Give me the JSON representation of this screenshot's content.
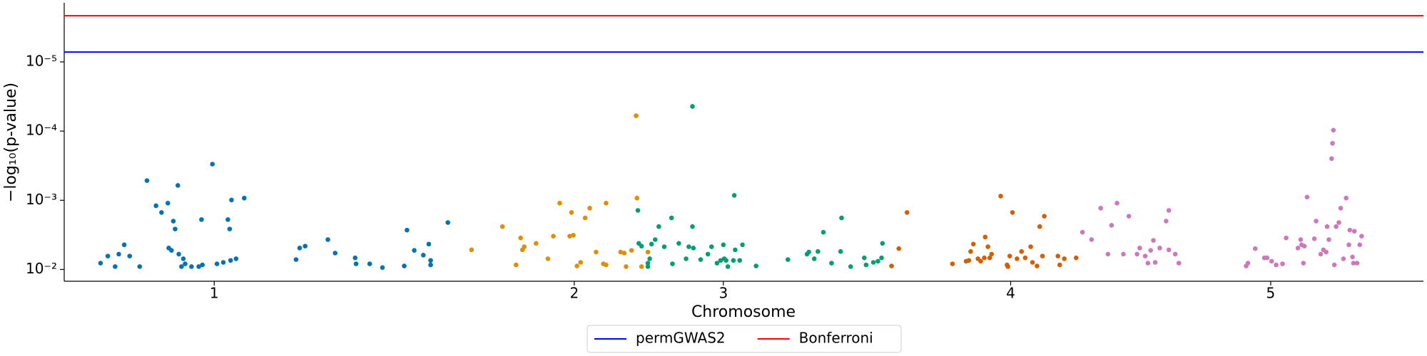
{
  "chart_data": {
    "type": "scatter",
    "x_label": "Chromosome",
    "y_label": "−log₁₀(p-value)",
    "log_y": true,
    "xlim": [
      0,
      149.5
    ],
    "xticks": [
      {
        "value": 16.5,
        "label": "1"
      },
      {
        "value": 56.1,
        "label": "2"
      },
      {
        "value": 72.5,
        "label": "3"
      },
      {
        "value": 104.1,
        "label": "4"
      },
      {
        "value": 132.7,
        "label": "5"
      }
    ],
    "ylim": [
      0.0148,
      1.4e-06
    ],
    "yticks": [
      {
        "value": 0.01,
        "label": "10⁻²"
      },
      {
        "value": 0.001,
        "label": "10⁻³"
      },
      {
        "value": 0.0001,
        "label": "10⁻⁴"
      },
      {
        "value": 1e-05,
        "label": "10⁻⁵"
      }
    ],
    "legend_position": "bottom",
    "thresholds": [
      {
        "name": "permGWAS2",
        "color": "#0000ff",
        "value": 7.2e-06
      },
      {
        "name": "Bonferroni",
        "color": "#ff0000",
        "value": 2.15e-06
      }
    ],
    "series": [
      {
        "color": "#0173b2",
        "x": [
          4.0,
          4.8,
          5.6,
          6.0,
          6.6,
          7.2,
          8.3,
          9.1,
          10.1,
          10.7,
          11.4,
          11.5,
          11.8,
          12.0,
          12.2,
          12.5,
          12.6,
          12.9,
          13.1,
          13.3,
          14.0,
          14.8,
          15.1,
          15.2,
          16.3,
          16.8,
          17.5,
          18.0,
          18.2,
          18.3,
          18.4,
          18.9,
          19.8,
          25.5,
          25.9,
          26.5,
          29.0,
          29.8,
          32.0,
          32.1,
          33.6,
          35.0,
          37.4,
          37.7,
          38.5,
          39.5,
          40.1,
          40.3,
          40.3,
          42.2
        ],
        "values": [
          0.0081,
          0.0064,
          0.0091,
          0.006,
          0.0044,
          0.0064,
          0.0091,
          0.00052,
          0.0012,
          0.0015,
          0.0011,
          0.0049,
          0.0053,
          0.002,
          0.0026,
          0.00061,
          0.006,
          0.0091,
          0.007,
          0.0083,
          0.0091,
          0.0091,
          0.0019,
          0.0086,
          0.0003,
          0.0083,
          0.0079,
          0.0019,
          0.0026,
          0.0074,
          0.00099,
          0.007,
          0.00093,
          0.0072,
          0.0049,
          0.0046,
          0.0037,
          0.0058,
          0.0068,
          0.0083,
          0.0083,
          0.0094,
          0.0089,
          0.0027,
          0.0053,
          0.0062,
          0.0043,
          0.0074,
          0.0086,
          0.0021
        ]
      },
      {
        "color": "#de8f05",
        "x": [
          44.8,
          48.2,
          49.7,
          50.2,
          50.4,
          50.6,
          51.9,
          53.2,
          53.8,
          54.5,
          55.6,
          55.8,
          56.0,
          56.4,
          56.8,
          57.3,
          57.8,
          58.5,
          59.3,
          59.6,
          59.6,
          61.2,
          61.6,
          61.8,
          62.4,
          62.9,
          63.0,
          63.5,
          64.2
        ],
        "values": [
          0.0052,
          0.0024,
          0.0086,
          0.0035,
          0.0052,
          0.0047,
          0.0042,
          0.007,
          0.0033,
          0.0011,
          0.0033,
          0.0015,
          0.0032,
          0.0089,
          0.0079,
          0.0018,
          0.0013,
          0.0056,
          0.0083,
          0.0086,
          0.0011,
          0.0056,
          0.0058,
          0.0091,
          0.0053,
          6e-05,
          0.00093,
          0.0091,
          0.0056
        ]
      },
      {
        "color": "#029e73",
        "x": [
          63.1,
          63.2,
          63.5,
          64.2,
          64.2,
          64.4,
          64.6,
          65.0,
          65.4,
          66.0,
          66.8,
          66.9,
          67.6,
          68.4,
          68.7,
          69.1,
          69.1,
          69.2,
          70.0,
          70.8,
          71.2,
          71.8,
          72.2,
          72.5,
          72.6,
          72.8,
          73.0,
          73.6,
          73.7,
          73.8,
          74.3,
          74.6,
          76.1,
          79.6,
          81.7,
          81.9,
          82.5,
          82.9,
          83.5,
          84.4,
          85.4,
          85.5,
          86.5,
          88.0,
          88.2,
          89.0,
          89.5,
          89.9,
          90.0
        ],
        "values": [
          0.0014,
          0.0042,
          0.0046,
          0.0081,
          0.0091,
          0.007,
          0.0043,
          0.0037,
          0.0024,
          0.0047,
          0.0018,
          0.0083,
          0.0042,
          0.007,
          0.0047,
          4.4e-05,
          0.0024,
          0.0049,
          0.0072,
          0.006,
          0.0047,
          0.0081,
          0.0074,
          0.0044,
          0.007,
          0.0074,
          0.0091,
          0.0074,
          0.00085,
          0.0052,
          0.0074,
          0.0044,
          0.0089,
          0.0072,
          0.006,
          0.0056,
          0.007,
          0.0055,
          0.0029,
          0.0081,
          0.0055,
          0.0018,
          0.0091,
          0.0068,
          0.0086,
          0.0079,
          0.0076,
          0.0068,
          0.0042
        ]
      },
      {
        "color": "#d55e00",
        "x": [
          91.0,
          91.8,
          92.7,
          97.7,
          99.2,
          99.5,
          99.7,
          100.0,
          100.5,
          100.8,
          101.2,
          101.3,
          101.6,
          101.8,
          102.0,
          103.0,
          103.7,
          103.8,
          104.0,
          104.3,
          104.8,
          105.3,
          105.7,
          106.3,
          106.5,
          107.0,
          107.3,
          107.6,
          107.8,
          109.3,
          109.5,
          110.0,
          111.3
        ],
        "values": [
          0.0089,
          0.005,
          0.0015,
          0.0083,
          0.0076,
          0.0074,
          0.0055,
          0.0043,
          0.007,
          0.0076,
          0.0068,
          0.0034,
          0.0047,
          0.0068,
          0.006,
          0.00087,
          0.0086,
          0.0091,
          0.0064,
          0.0015,
          0.007,
          0.0055,
          0.0068,
          0.0047,
          0.0079,
          0.0089,
          0.0024,
          0.0064,
          0.0017,
          0.0064,
          0.0086,
          0.007,
          0.0068
        ]
      },
      {
        "color": "#cc78bc",
        "x": [
          112.0,
          113.0,
          114.0,
          114.8,
          115.2,
          115.8,
          116.5,
          117.1,
          118.0,
          118.3,
          118.9,
          119.2,
          119.5,
          119.8,
          120.0,
          120.5,
          121.2,
          121.5,
          121.5,
          122.2,
          122.6,
          130.0,
          130.2,
          131.0,
          132.0,
          132.3,
          132.8,
          133.3,
          134.0,
          134.4,
          135.7,
          136.0,
          136.1,
          136.3,
          136.4,
          136.7,
          137.5,
          137.7,
          138.2,
          138.5,
          138.8,
          138.9,
          139.1,
          139.4,
          139.5,
          139.6,
          139.7,
          139.9,
          140.2,
          140.4,
          140.7,
          141.0,
          141.3,
          141.4,
          141.7,
          141.8,
          141.9,
          142.2,
          142.5,
          142.7
        ],
        "values": [
          0.0029,
          0.0037,
          0.0013,
          0.006,
          0.0023,
          0.0011,
          0.006,
          0.0017,
          0.006,
          0.0049,
          0.0064,
          0.0081,
          0.0053,
          0.0038,
          0.0079,
          0.0049,
          0.002,
          0.0014,
          0.0052,
          0.006,
          0.0081,
          0.0089,
          0.0081,
          0.005,
          0.0068,
          0.0068,
          0.0076,
          0.0086,
          0.0083,
          0.0035,
          0.0049,
          0.0037,
          0.0044,
          0.0081,
          0.0046,
          0.0009,
          0.0036,
          0.002,
          0.006,
          0.0052,
          0.0056,
          0.0024,
          0.0037,
          0.00025,
          0.00015,
          9.7e-05,
          0.0086,
          0.0024,
          0.0021,
          0.0013,
          0.007,
          0.00093,
          0.0044,
          0.0027,
          0.0066,
          0.0081,
          0.0028,
          0.0081,
          0.0044,
          0.0033
        ]
      }
    ]
  }
}
